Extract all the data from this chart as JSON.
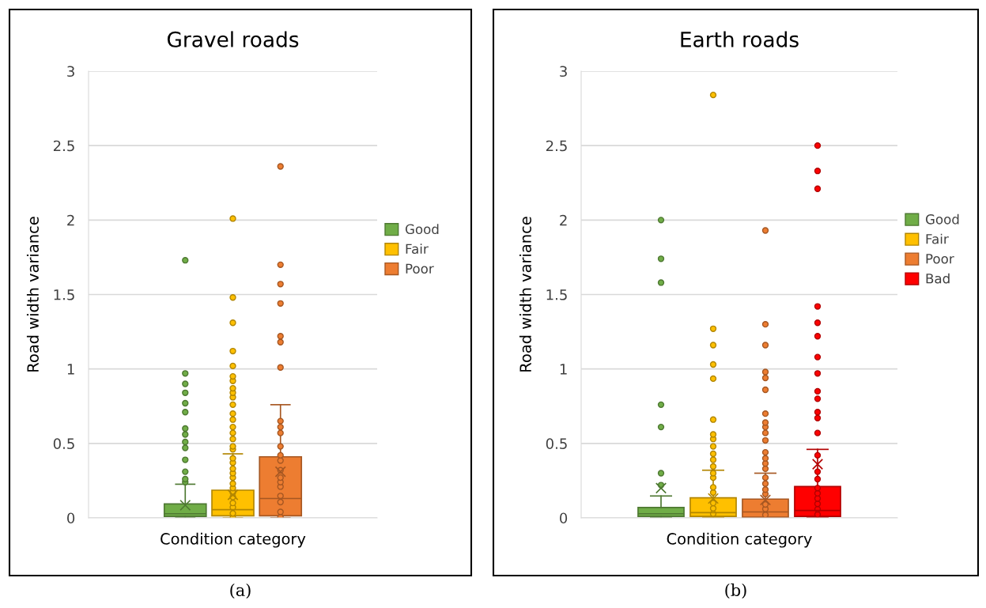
{
  "chart_data": [
    {
      "type": "box",
      "title": "Gravel roads",
      "xlabel": "Condition category",
      "ylabel": "Road width variance",
      "categories": [
        null
      ],
      "ylim": [
        0,
        3
      ],
      "yticks": [
        0,
        0.5,
        1,
        1.5,
        2,
        2.5,
        3
      ],
      "grid": "y",
      "legend": "right",
      "annotations": [
        "(a)"
      ],
      "series": [
        {
          "name": "Good",
          "color": "#70ad47",
          "boxes": [
            {
              "low": 0,
              "q1": 0.01,
              "median": 0.028,
              "q3": 0.094,
              "high": 0.226,
              "mean": 0.085,
              "outliers": [
                0.24,
                0.26,
                0.31,
                0.39,
                0.47,
                0.51,
                0.56,
                0.6,
                0.71,
                0.77,
                0.84,
                0.9,
                0.97,
                1.73
              ]
            }
          ]
        },
        {
          "name": "Fair",
          "color": "#ffc000",
          "boxes": [
            {
              "low": 0,
              "q1": 0.014,
              "median": 0.055,
              "q3": 0.186,
              "high": 0.43,
              "mean": 0.155,
              "outliers": [
                0,
                0.03,
                0.07,
                0.1,
                0.14,
                0.17,
                0.2,
                0.23,
                0.27,
                0.3,
                0.33,
                0.37,
                0.4,
                0.46,
                0.48,
                0.53,
                0.57,
                0.61,
                0.66,
                0.7,
                0.76,
                0.81,
                0.84,
                0.87,
                0.92,
                0.95,
                1.02,
                1.12,
                1.31,
                1.48,
                2.01
              ]
            }
          ]
        },
        {
          "name": "Poor",
          "color": "#ed7d31",
          "boxes": [
            {
              "low": 0,
              "q1": 0.014,
              "median": 0.13,
              "q3": 0.41,
              "high": 0.76,
              "mean": 0.31,
              "outliers": [
                0.005,
                0.04,
                0.106,
                0.147,
                0.21,
                0.24,
                0.27,
                0.32,
                0.385,
                0.42,
                0.48,
                0.57,
                0.61,
                0.65,
                1.01,
                1.18,
                1.22,
                1.44,
                1.57,
                1.7,
                2.36
              ]
            }
          ]
        }
      ]
    },
    {
      "type": "box",
      "title": "Earth roads",
      "xlabel": "Condition category",
      "ylabel": "Road width variance",
      "categories": [
        null
      ],
      "ylim": [
        0,
        3
      ],
      "yticks": [
        0,
        0.5,
        1,
        1.5,
        2,
        2.5,
        3
      ],
      "grid": "y",
      "legend": "right",
      "annotations": [
        "(b)"
      ],
      "series": [
        {
          "name": "Good",
          "color": "#70ad47",
          "boxes": [
            {
              "low": 0,
              "q1": 0.01,
              "median": 0.028,
              "q3": 0.07,
              "high": 0.147,
              "mean": 0.2,
              "outliers": [
                0.22,
                0.3,
                0.61,
                0.76,
                1.58,
                1.74,
                2.0
              ]
            }
          ]
        },
        {
          "name": "Fair",
          "color": "#ffc000",
          "boxes": [
            {
              "low": 0,
              "q1": 0.01,
              "median": 0.035,
              "q3": 0.135,
              "high": 0.32,
              "mean": 0.13,
              "outliers": [
                0.028,
                0.064,
                0.1,
                0.17,
                0.205,
                0.27,
                0.3,
                0.345,
                0.39,
                0.43,
                0.48,
                0.53,
                0.56,
                0.66,
                0.935,
                1.03,
                1.16,
                1.27,
                2.84
              ]
            }
          ]
        },
        {
          "name": "Poor",
          "color": "#ed7d31",
          "boxes": [
            {
              "low": 0,
              "q1": 0.005,
              "median": 0.04,
              "q3": 0.126,
              "high": 0.3,
              "mean": 0.12,
              "outliers": [
                0.02,
                0.06,
                0.09,
                0.16,
                0.19,
                0.23,
                0.27,
                0.33,
                0.365,
                0.4,
                0.44,
                0.52,
                0.57,
                0.61,
                0.64,
                0.7,
                0.86,
                0.94,
                0.98,
                1.16,
                1.3,
                1.93
              ]
            }
          ]
        },
        {
          "name": "Bad",
          "color": "#ff0000",
          "boxes": [
            {
              "low": 0,
              "q1": 0.01,
              "median": 0.05,
              "q3": 0.21,
              "high": 0.46,
              "mean": 0.36,
              "outliers": [
                0.023,
                0.058,
                0.094,
                0.13,
                0.165,
                0.2,
                0.26,
                0.31,
                0.42,
                0.57,
                0.67,
                0.71,
                0.8,
                0.85,
                0.97,
                1.08,
                1.22,
                1.31,
                1.42,
                2.21,
                2.33,
                2.5
              ]
            }
          ]
        }
      ]
    }
  ]
}
